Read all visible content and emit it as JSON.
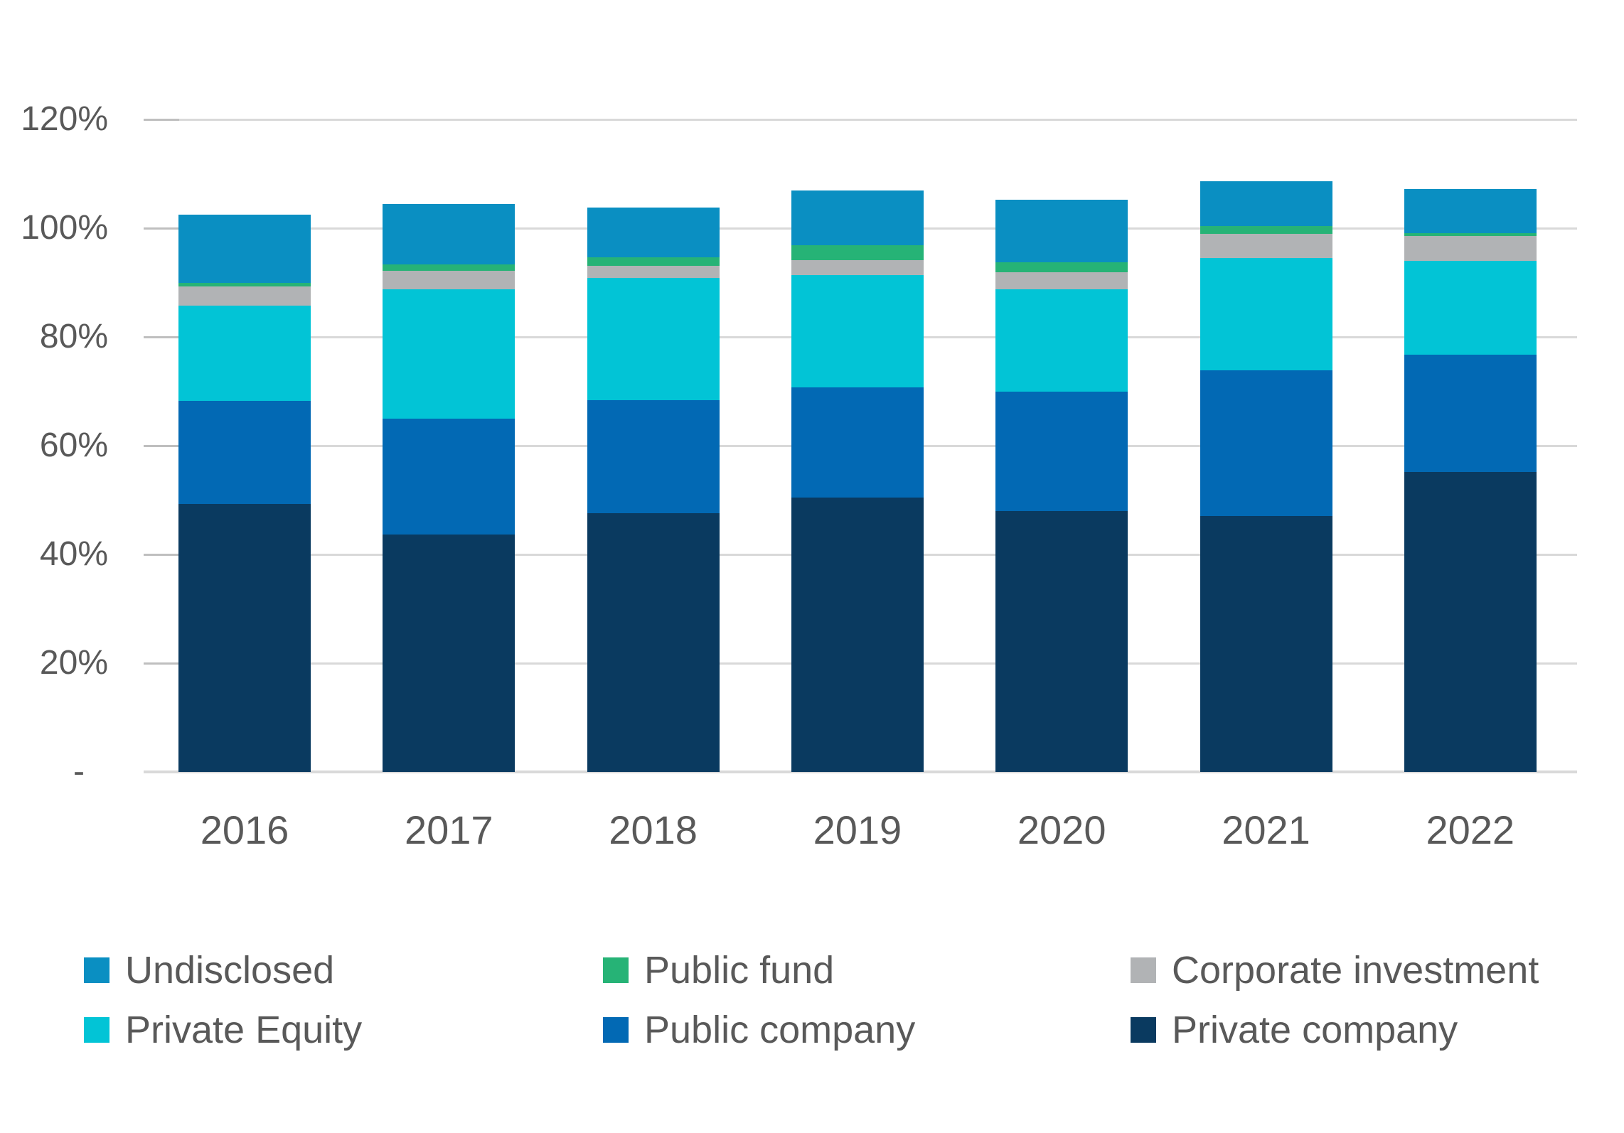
{
  "chart_data": {
    "type": "bar",
    "stacked": true,
    "unit": "%",
    "categories": [
      "2016",
      "2017",
      "2018",
      "2019",
      "2020",
      "2021",
      "2022"
    ],
    "series": [
      {
        "name": "Private company",
        "color": "#0A3A60",
        "values": [
          49.3,
          43.6,
          47.6,
          50.5,
          48.0,
          47.0,
          55.2
        ]
      },
      {
        "name": "Public company",
        "color": "#0269B4",
        "values": [
          19.0,
          21.4,
          20.8,
          20.2,
          21.9,
          26.9,
          21.5
        ]
      },
      {
        "name": "Private Equity",
        "color": "#02C4D6",
        "values": [
          17.4,
          23.7,
          22.5,
          20.7,
          18.9,
          20.6,
          17.3
        ]
      },
      {
        "name": "Corporate investment",
        "color": "#B1B3B5",
        "values": [
          3.6,
          3.5,
          2.2,
          2.7,
          3.1,
          4.5,
          4.6
        ]
      },
      {
        "name": "Public fund",
        "color": "#26B376",
        "values": [
          0.6,
          1.1,
          1.5,
          2.8,
          1.8,
          1.4,
          0.5
        ]
      },
      {
        "name": "Undisclosed",
        "color": "#0A8FC2",
        "values": [
          12.6,
          11.1,
          9.2,
          10.0,
          11.6,
          8.2,
          8.1
        ]
      }
    ],
    "y_axis": {
      "min": 0,
      "max": 120,
      "step": 20,
      "tick_labels": [
        "120%",
        "100%",
        "80%",
        "60%",
        "40%",
        "20%",
        "-"
      ],
      "tick_values": [
        120,
        100,
        80,
        60,
        40,
        20,
        0
      ],
      "grid": true
    },
    "legend": {
      "position": "bottom",
      "rows": [
        [
          "Undisclosed",
          "Public fund",
          "Corporate investment"
        ],
        [
          "Private Equity",
          "Public company",
          "Private company"
        ]
      ]
    },
    "title": "",
    "xlabel": "",
    "ylabel": ""
  },
  "styles": {
    "label_color": "#595959",
    "grid_color": "#D9D9D9",
    "tick_color": "#BFBFBF",
    "background": "#FFFFFF"
  }
}
